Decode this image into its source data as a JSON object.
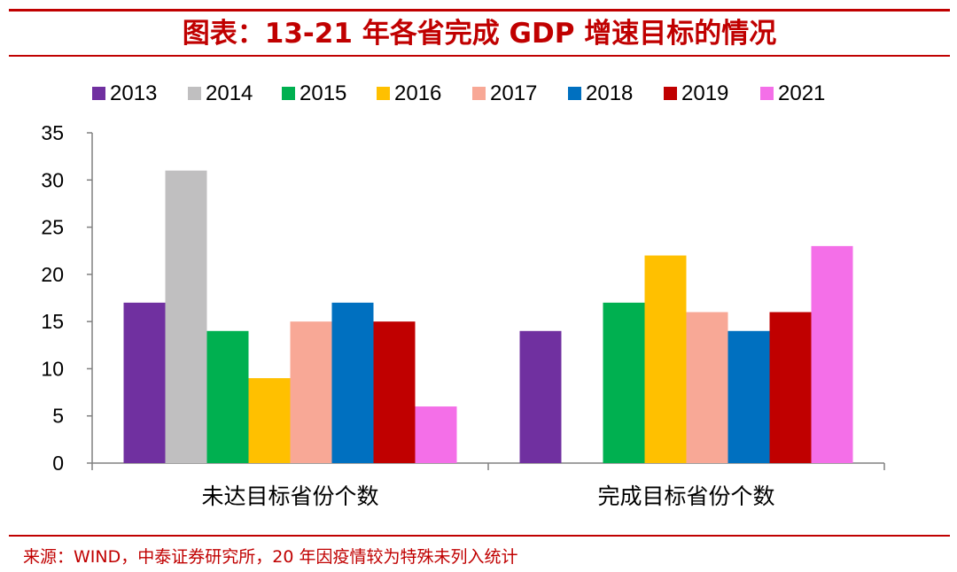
{
  "header": {
    "title": "图表：13-21 年各省完成 GDP 增速目标的情况"
  },
  "footer": {
    "source": "来源：WIND，中泰证券研究所，20 年因疫情较为特殊未列入统计"
  },
  "chart_data": {
    "type": "bar",
    "title": "图表：13-21 年各省完成 GDP 增速目标的情况",
    "categories": [
      "未达目标省份个数",
      "完成目标省份个数"
    ],
    "ylim": [
      0,
      35
    ],
    "yticks": [
      0,
      5,
      10,
      15,
      20,
      25,
      30,
      35
    ],
    "grid": false,
    "legend_position": "top",
    "series": [
      {
        "name": "2013",
        "color": "#7030a0",
        "values": [
          17,
          14
        ]
      },
      {
        "name": "2014",
        "color": "#c0bfc0",
        "values": [
          31,
          0
        ]
      },
      {
        "name": "2015",
        "color": "#00b050",
        "values": [
          14,
          17
        ]
      },
      {
        "name": "2016",
        "color": "#ffc000",
        "values": [
          9,
          22
        ]
      },
      {
        "name": "2017",
        "color": "#f8a896",
        "values": [
          15,
          16
        ]
      },
      {
        "name": "2018",
        "color": "#0070c0",
        "values": [
          17,
          14
        ]
      },
      {
        "name": "2019",
        "color": "#c00000",
        "values": [
          15,
          16
        ]
      },
      {
        "name": "2021",
        "color": "#f46fe8",
        "values": [
          6,
          23
        ]
      }
    ]
  }
}
